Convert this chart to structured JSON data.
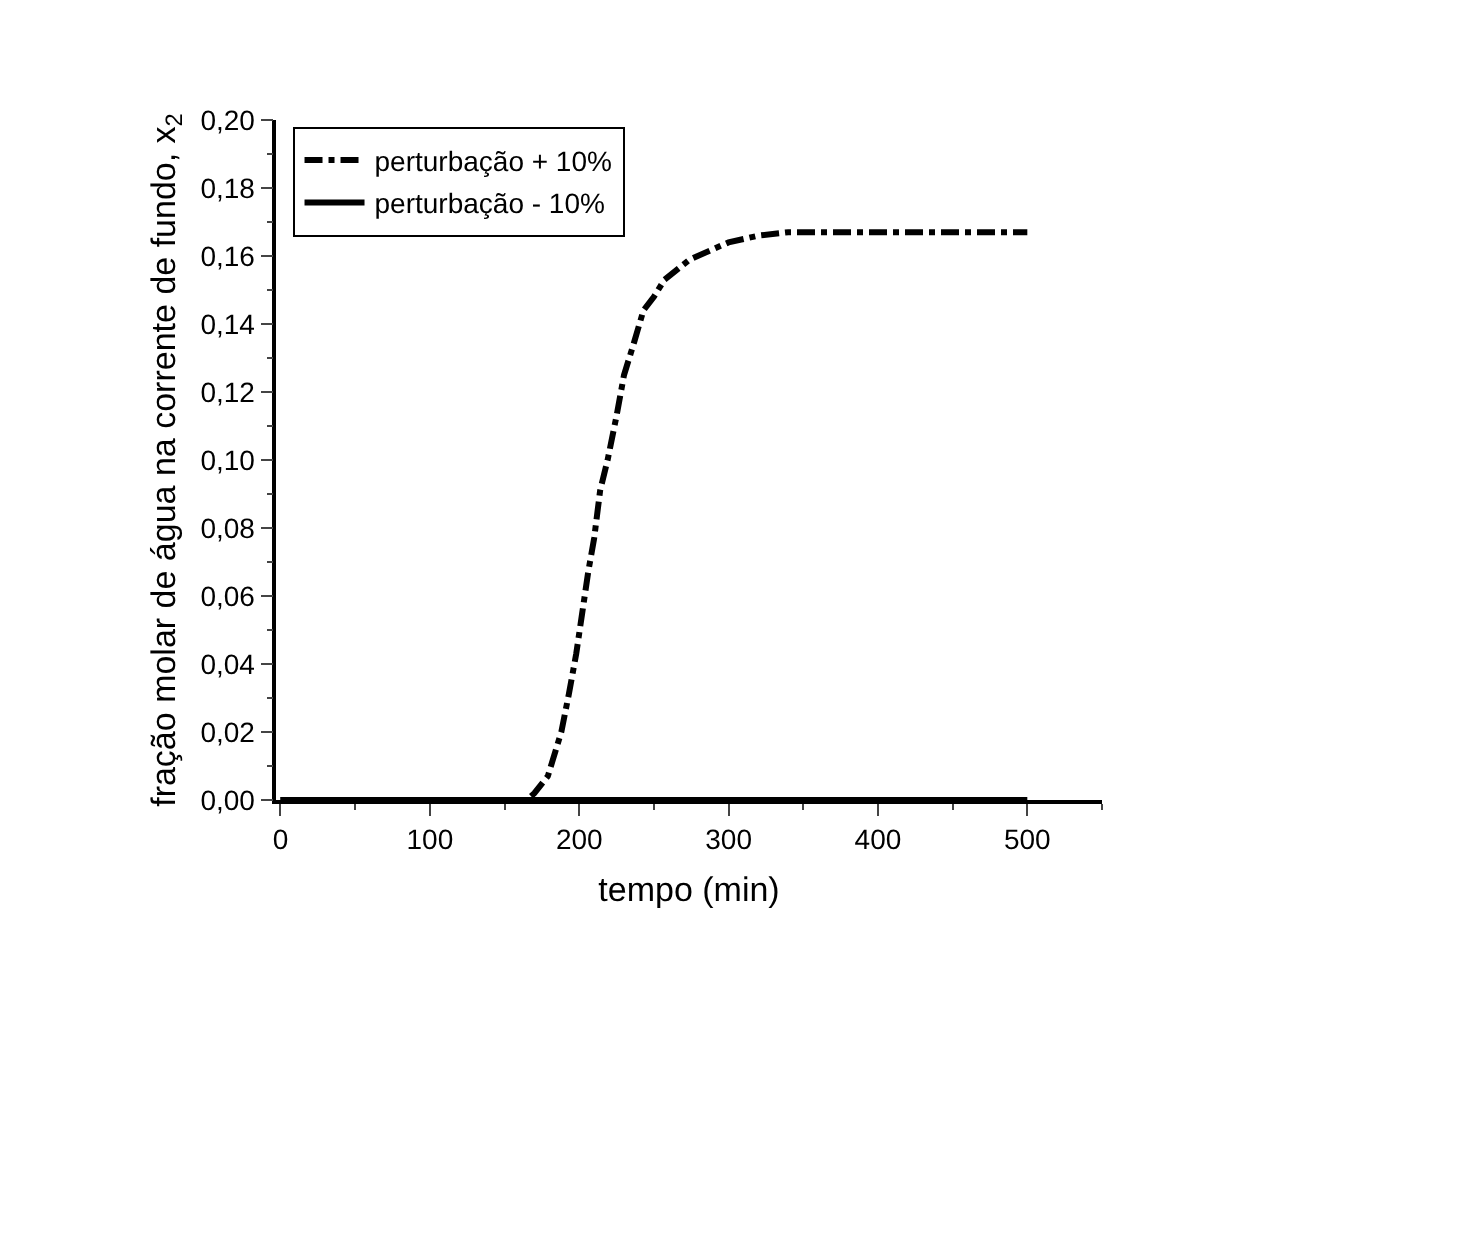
{
  "chart_data": {
    "type": "line",
    "xlabel": "tempo (min)",
    "ylabel": "fração molar de água na corrente de fundo, x$_{2}$",
    "xlim": [
      -3,
      550
    ],
    "xticks": [
      0,
      100,
      200,
      300,
      400,
      500
    ],
    "ylim": [
      0,
      0.2
    ],
    "yticks": [
      {
        "value": 0,
        "label": "0,00"
      },
      {
        "value": 0.02,
        "label": "0,02"
      },
      {
        "value": 0.04,
        "label": "0,04"
      },
      {
        "value": 0.06,
        "label": "0,06"
      },
      {
        "value": 0.08,
        "label": "0,08"
      },
      {
        "value": 0.1,
        "label": "0,10"
      },
      {
        "value": 0.12,
        "label": "0,12"
      },
      {
        "value": 0.14,
        "label": "0,14"
      },
      {
        "value": 0.16,
        "label": "0,16"
      },
      {
        "value": 0.18,
        "label": "0,18"
      },
      {
        "value": 0.2,
        "label": "0,20"
      }
    ],
    "grid": false,
    "legend": "top left",
    "marker": "none",
    "series": [
      {
        "name": "perturbação + 10%",
        "color": "#000000",
        "line_style": "dashed",
        "x": [
          0,
          100,
          165,
          170,
          179,
          188,
          193,
          198,
          202,
          206,
          210,
          214,
          219,
          225,
          230,
          237,
          243,
          250,
          257,
          274,
          300,
          320,
          340,
          400,
          500
        ],
        "values": [
          0,
          0,
          0,
          0.002,
          0.007,
          0.02,
          0.031,
          0.043,
          0.055,
          0.067,
          0.077,
          0.091,
          0.1,
          0.113,
          0.125,
          0.135,
          0.144,
          0.148,
          0.153,
          0.159,
          0.164,
          0.166,
          0.167,
          0.167,
          0.167
        ]
      },
      {
        "name": "perturbação - 10%",
        "color": "#000000",
        "line_style": "solid",
        "x": [
          0,
          500
        ],
        "values": [
          0,
          0
        ]
      }
    ]
  }
}
